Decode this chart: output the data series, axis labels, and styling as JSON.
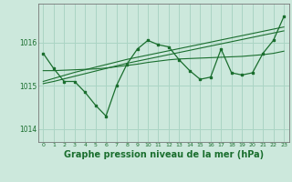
{
  "background_color": "#cce8dc",
  "grid_color": "#aad4c4",
  "line_color_main": "#1a6e2e",
  "xlabel": "Graphe pression niveau de la mer (hPa)",
  "xlabel_fontsize": 7.0,
  "ylim": [
    1013.7,
    1016.9
  ],
  "yticks": [
    1014,
    1015,
    1016
  ],
  "xlim": [
    -0.5,
    23.5
  ],
  "xticks": [
    0,
    1,
    2,
    3,
    4,
    5,
    6,
    7,
    8,
    9,
    10,
    11,
    12,
    13,
    14,
    15,
    16,
    17,
    18,
    19,
    20,
    21,
    22,
    23
  ],
  "series_main": [
    1015.75,
    1015.4,
    1015.1,
    1015.1,
    1014.85,
    1014.55,
    1014.3,
    1015.0,
    1015.5,
    1015.85,
    1016.05,
    1015.95,
    1015.9,
    1015.6,
    1015.35,
    1015.15,
    1015.2,
    1015.85,
    1015.3,
    1015.25,
    1015.3,
    1015.75,
    1016.05,
    1016.6
  ],
  "series_smooth1": [
    1015.35,
    1015.35,
    1015.36,
    1015.37,
    1015.38,
    1015.39,
    1015.41,
    1015.44,
    1015.47,
    1015.5,
    1015.54,
    1015.57,
    1015.6,
    1015.62,
    1015.63,
    1015.64,
    1015.65,
    1015.66,
    1015.67,
    1015.68,
    1015.7,
    1015.72,
    1015.75,
    1015.8
  ],
  "series_linear1": [
    1015.05,
    1015.1,
    1015.16,
    1015.22,
    1015.28,
    1015.34,
    1015.4,
    1015.46,
    1015.52,
    1015.57,
    1015.62,
    1015.67,
    1015.72,
    1015.77,
    1015.82,
    1015.87,
    1015.92,
    1015.97,
    1016.02,
    1016.07,
    1016.12,
    1016.17,
    1016.22,
    1016.27
  ],
  "series_linear2": [
    1015.1,
    1015.17,
    1015.24,
    1015.31,
    1015.37,
    1015.43,
    1015.49,
    1015.55,
    1015.61,
    1015.66,
    1015.71,
    1015.76,
    1015.81,
    1015.86,
    1015.91,
    1015.96,
    1016.01,
    1016.06,
    1016.11,
    1016.16,
    1016.21,
    1016.26,
    1016.31,
    1016.36
  ]
}
